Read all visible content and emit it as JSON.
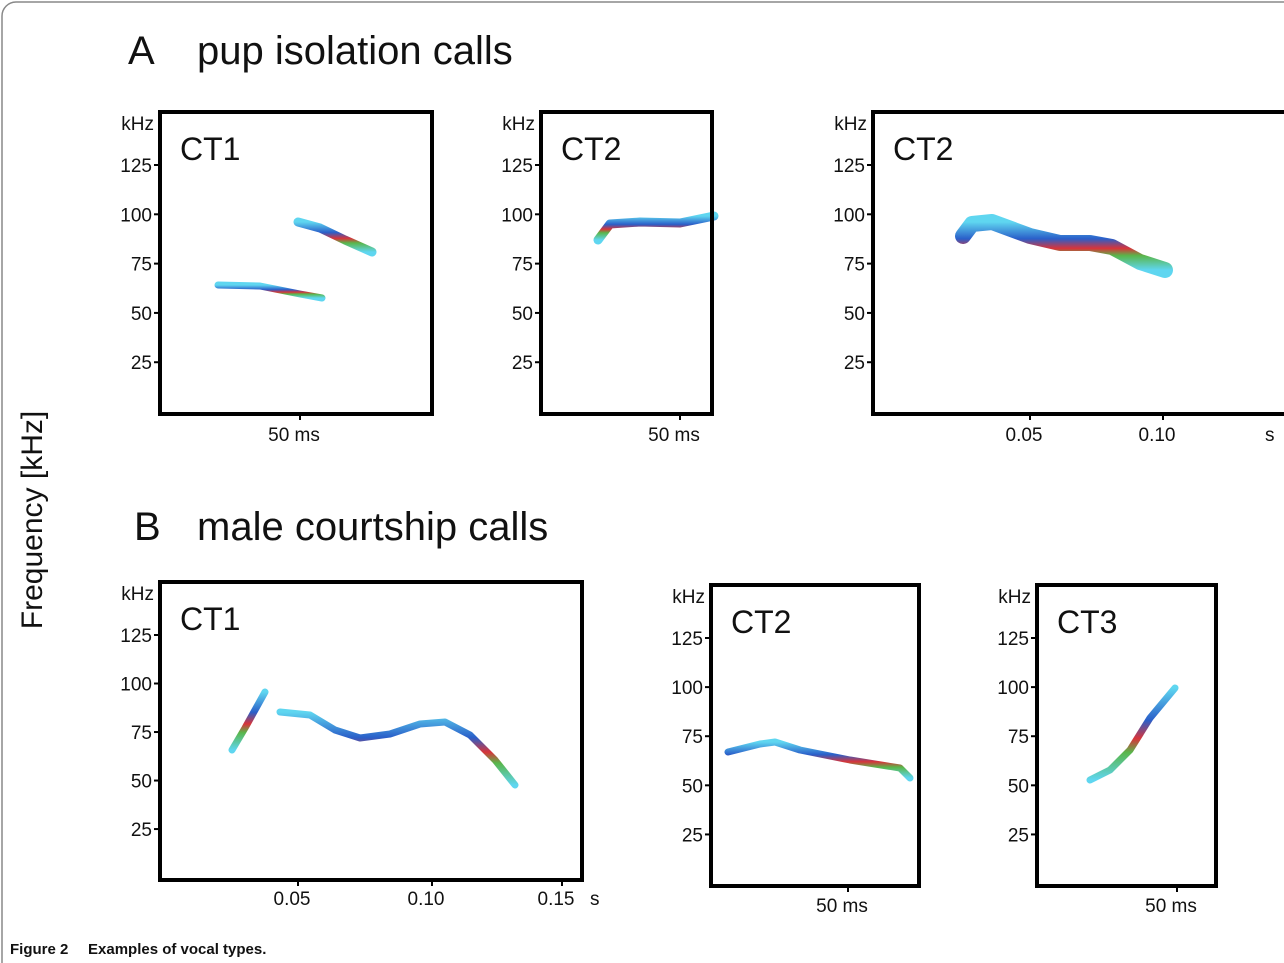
{
  "figure": {
    "y_axis_label": "Frequency [kHz]",
    "caption": {
      "label": "Figure 2",
      "text": "Examples of vocal types."
    },
    "sections": [
      {
        "letter": "A",
        "title": "pup isolation calls",
        "panels": [
          {
            "name": "CT1",
            "y_unit": "kHz",
            "y_ticks": [
              "125",
              "100",
              "75",
              "50",
              "25"
            ],
            "x_ticks": [
              "50 ms"
            ]
          },
          {
            "name": "CT2",
            "y_unit": "kHz",
            "y_ticks": [
              "125",
              "100",
              "75",
              "50",
              "25"
            ],
            "x_ticks": [
              "50 ms"
            ]
          },
          {
            "name": "CT2",
            "y_unit": "kHz",
            "y_ticks": [
              "125",
              "100",
              "75",
              "50",
              "25"
            ],
            "x_ticks": [
              "0.05",
              "0.10"
            ],
            "x_unit": "s"
          }
        ]
      },
      {
        "letter": "B",
        "title": "male courtship calls",
        "panels": [
          {
            "name": "CT1",
            "y_unit": "kHz",
            "y_ticks": [
              "125",
              "100",
              "75",
              "50",
              "25"
            ],
            "x_ticks": [
              "0.05",
              "0.10",
              "0.15"
            ],
            "x_unit": "s"
          },
          {
            "name": "CT2",
            "y_unit": "kHz",
            "y_ticks": [
              "125",
              "100",
              "75",
              "50",
              "25"
            ],
            "x_ticks": [
              "50 ms"
            ]
          },
          {
            "name": "CT3",
            "y_unit": "kHz",
            "y_ticks": [
              "125",
              "100",
              "75",
              "50",
              "25"
            ],
            "x_ticks": [
              "50 ms"
            ]
          }
        ]
      }
    ]
  }
}
